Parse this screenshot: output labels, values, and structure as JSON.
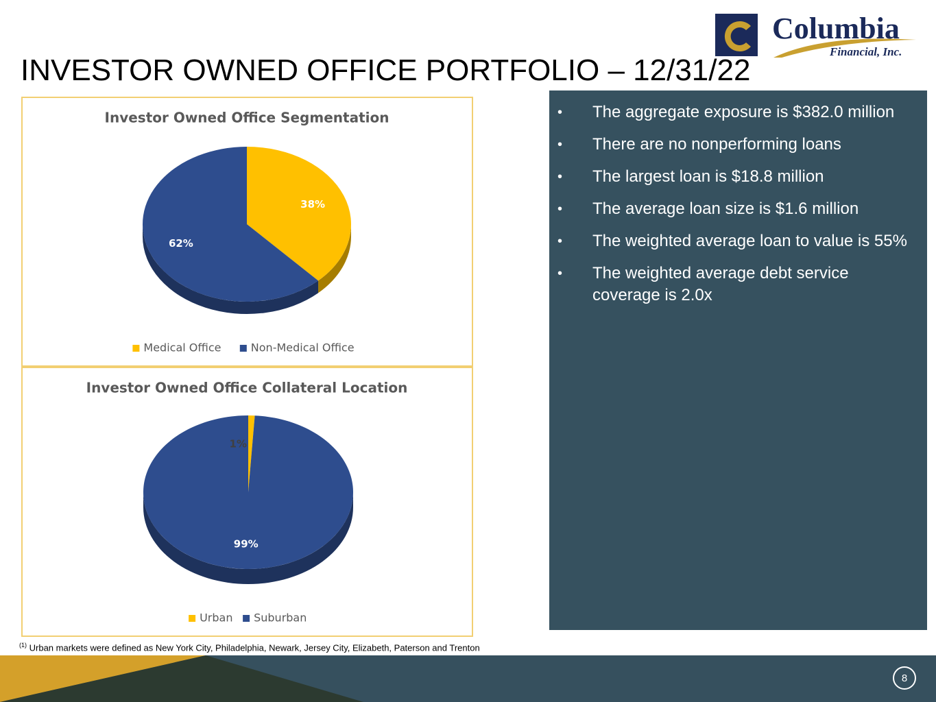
{
  "logo": {
    "name": "Columbia",
    "subname": "Financial, Inc."
  },
  "title": "INVESTOR OWNED OFFICE PORTFOLIO – 12/31/22",
  "bullets": [
    "The aggregate exposure is $382.0 million",
    "There are no nonperforming loans",
    "The largest loan is $18.8 million",
    "The average loan size is $1.6 million",
    "The weighted average loan to value is 55%",
    "The weighted average debt service coverage is 2.0x"
  ],
  "footnote": {
    "marker": "(1)",
    "text": "Urban markets were defined as  New York City, Philadelphia, Newark, Jersey City, Elizabeth, Paterson and Trenton"
  },
  "page_number": "8",
  "chart_data": [
    {
      "type": "pie",
      "title": "Investor Owned Office Segmentation",
      "categories": [
        "Medical Office",
        "Non-Medical Office"
      ],
      "values": [
        38,
        62
      ],
      "value_labels": [
        "38%",
        "62%"
      ],
      "colors": [
        "#ffc000",
        "#2e4d8e"
      ],
      "legend": "bottom"
    },
    {
      "type": "pie",
      "title": "Investor Owned Office Collateral Location",
      "categories": [
        "Urban",
        "Suburban"
      ],
      "values": [
        1,
        99
      ],
      "value_labels": [
        "1%",
        "99%"
      ],
      "colors": [
        "#ffc000",
        "#2e4d8e"
      ],
      "legend": "bottom"
    }
  ]
}
